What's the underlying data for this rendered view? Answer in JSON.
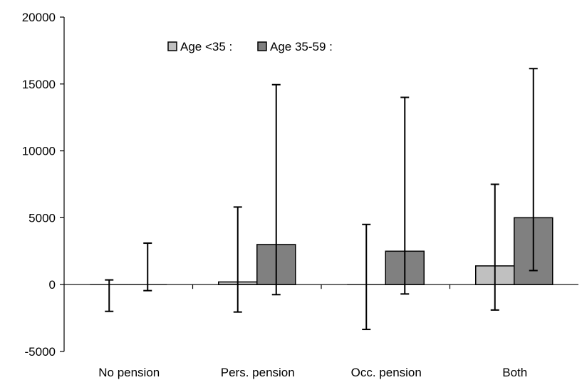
{
  "chart_data": {
    "type": "bar",
    "categories": [
      "No pension",
      "Pers. pension",
      "Occ. pension",
      "Both"
    ],
    "series": [
      {
        "name": "Age <35 :",
        "values": [
          0,
          200,
          0,
          1400
        ],
        "error_low": [
          -2000,
          -2050,
          -3350,
          -1900
        ],
        "error_high": [
          350,
          5800,
          4500,
          7500
        ],
        "color": "#c0c0c0"
      },
      {
        "name": "Age 35-59 :",
        "values": [
          0,
          3000,
          2500,
          5000
        ],
        "error_low": [
          -450,
          -750,
          -700,
          1050
        ],
        "error_high": [
          3100,
          14950,
          14000,
          16150
        ],
        "color": "#808080"
      }
    ],
    "ylim": [
      -5000,
      20000
    ],
    "yticks": [
      -5000,
      0,
      5000,
      10000,
      15000,
      20000
    ],
    "ytick_labels": [
      "-5000",
      "0",
      "5000",
      "10000",
      "15000",
      "20000"
    ],
    "grid": false,
    "legend_position": "top-center"
  }
}
